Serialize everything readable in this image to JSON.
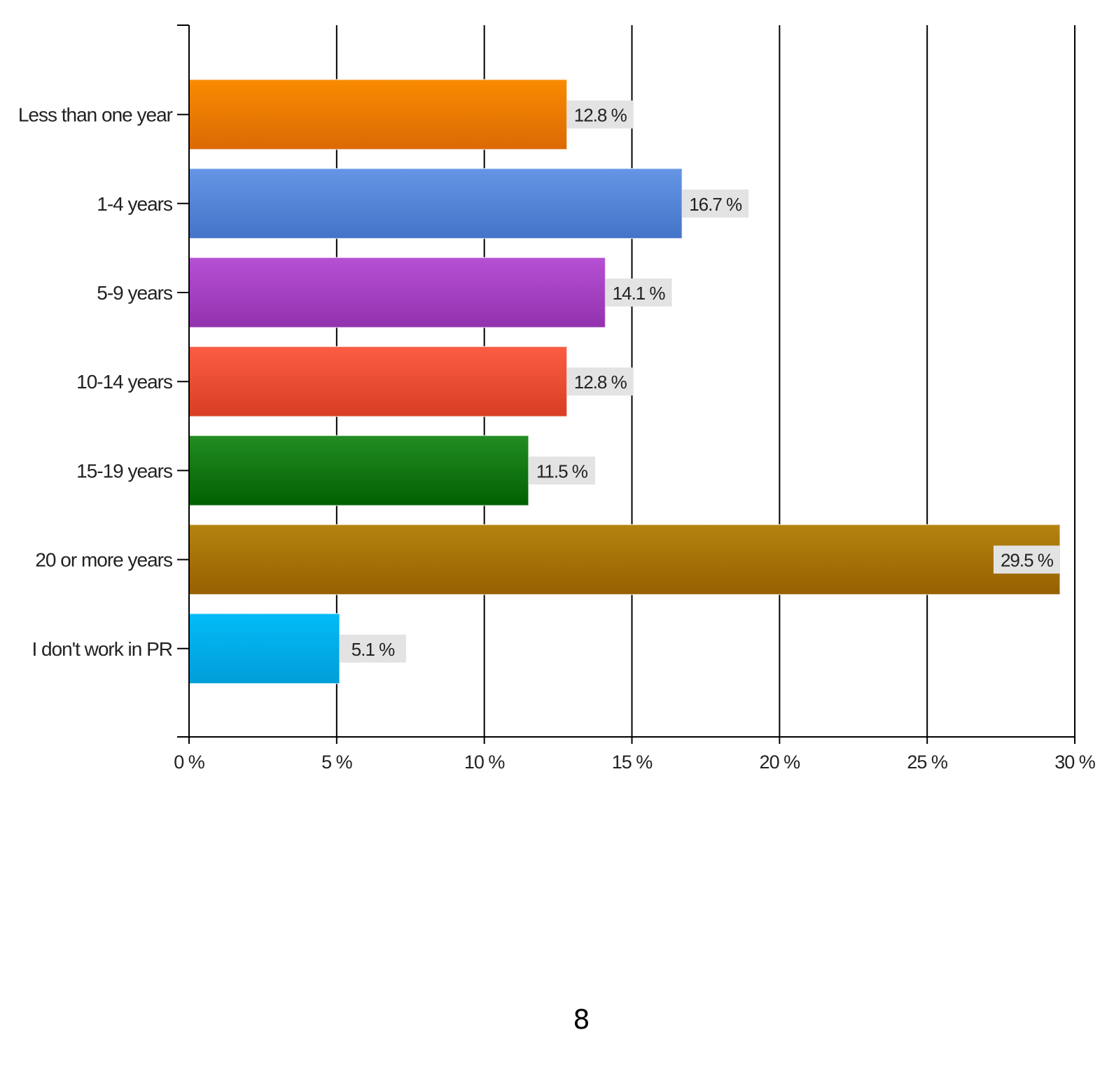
{
  "chart_data": {
    "type": "bar",
    "orientation": "horizontal",
    "categories": [
      "Less than one year",
      "1-4 years",
      "5-9 years",
      "10-14 years",
      "15-19 years",
      "20 or more years",
      "I don't work in PR"
    ],
    "values": [
      12.8,
      16.7,
      14.1,
      12.8,
      11.5,
      29.5,
      5.1
    ],
    "data_labels": [
      "12.8 %",
      "16.7 %",
      "14.1 %",
      "12.8 %",
      "11.5 %",
      "29.5 %",
      "5.1 %"
    ],
    "colors": [
      [
        "#f98b00",
        "#db6a05"
      ],
      [
        "#6595e4",
        "#4474c8"
      ],
      [
        "#b650d4",
        "#9232ae"
      ],
      [
        "#fb5d44",
        "#d83d23"
      ],
      [
        "#238d23",
        "#006000"
      ],
      [
        "#b4830f",
        "#966000"
      ],
      [
        "#02bbf7",
        "#019ed8"
      ]
    ],
    "xlim": [
      0,
      30
    ],
    "x_ticks": [
      0,
      5,
      10,
      15,
      20,
      25,
      30
    ],
    "x_tick_labels": [
      "0 %",
      "5 %",
      "10 %",
      "15 %",
      "20 %",
      "25 %",
      "30 %"
    ],
    "grid": true,
    "title": "",
    "xlabel": "",
    "ylabel": ""
  },
  "page": {
    "number": "8"
  }
}
